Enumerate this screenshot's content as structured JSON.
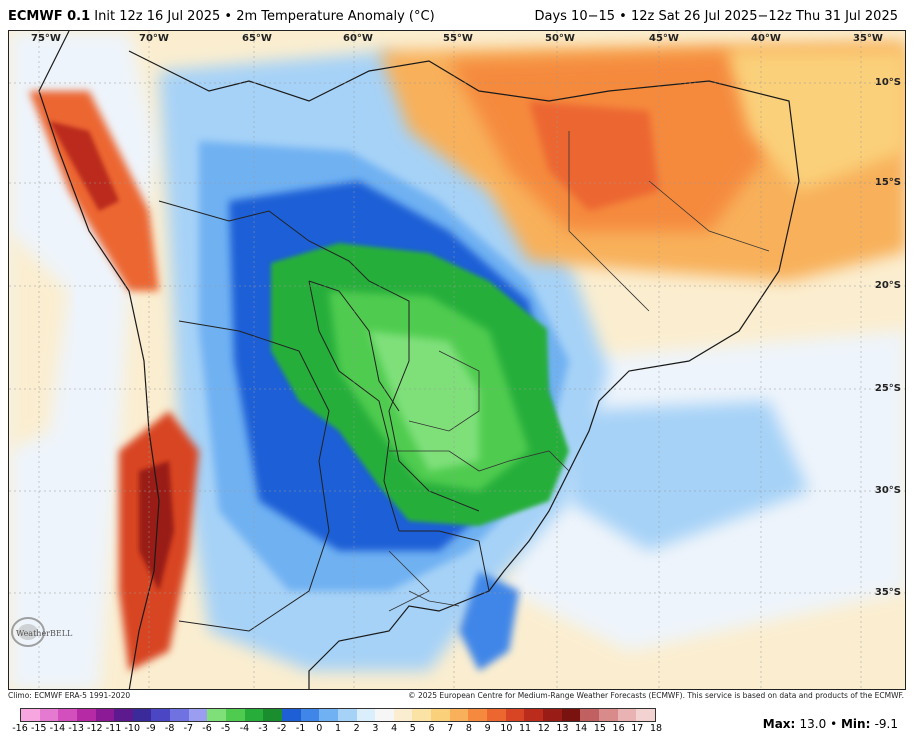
{
  "header": {
    "model": "ECMWF 0.1",
    "init": "Init 12z 16 Jul 2025",
    "field": "2m Temperature Anomaly (°C)",
    "valid": "Days 10−15 • 12z Sat 26 Jul 2025−12z Thu 31 Jul 2025"
  },
  "map": {
    "lon_labels": [
      "75°W",
      "70°W",
      "65°W",
      "60°W",
      "55°W",
      "50°W",
      "45°W",
      "40°W",
      "35°W"
    ],
    "lat_labels": [
      "10°S",
      "15°S",
      "20°S",
      "25°S",
      "30°S",
      "35°S"
    ]
  },
  "logo_text": "WeatherBELL",
  "credits": {
    "climo": "Climo: ECMWF ERA-5 1991-2020",
    "copyright": "© 2025 European Centre for Medium-Range Weather Forecasts (ECMWF). This service is based on data and products of the ECMWF."
  },
  "colorbar": {
    "labels": [
      "-16",
      "-15",
      "-14",
      "-13",
      "-12",
      "-11",
      "-10",
      "-9",
      "-8",
      "-7",
      "-6",
      "-5",
      "-4",
      "-3",
      "-2",
      "-1",
      "0",
      "1",
      "2",
      "3",
      "4",
      "5",
      "6",
      "7",
      "8",
      "9",
      "10",
      "11",
      "12",
      "13",
      "14",
      "15",
      "16",
      "17",
      "18"
    ],
    "colors": [
      "#f7a6e0",
      "#e57bd0",
      "#d24fbd",
      "#b62aa6",
      "#8c1a96",
      "#5c1a8e",
      "#3a2a9a",
      "#4b46c4",
      "#6f72e0",
      "#9a9df0",
      "#7fe07a",
      "#4fcc4f",
      "#27ae3a",
      "#1a8e2e",
      "#1f5fd6",
      "#3f86e8",
      "#6fb1f2",
      "#a6d2f7",
      "#dbeefb",
      "#f6f6f6",
      "#fbeed0",
      "#fbe3a6",
      "#fbd07a",
      "#f8b05a",
      "#f58a3e",
      "#ec6630",
      "#d84524",
      "#bb2c1c",
      "#9a1c16",
      "#7a1210",
      "#c06060",
      "#d98a8a",
      "#eab3b3",
      "#f3d2d2"
    ]
  },
  "stats": {
    "max_label": "Max",
    "max_value": "13.0",
    "min_label": "Min",
    "min_value": "-9.1"
  }
}
